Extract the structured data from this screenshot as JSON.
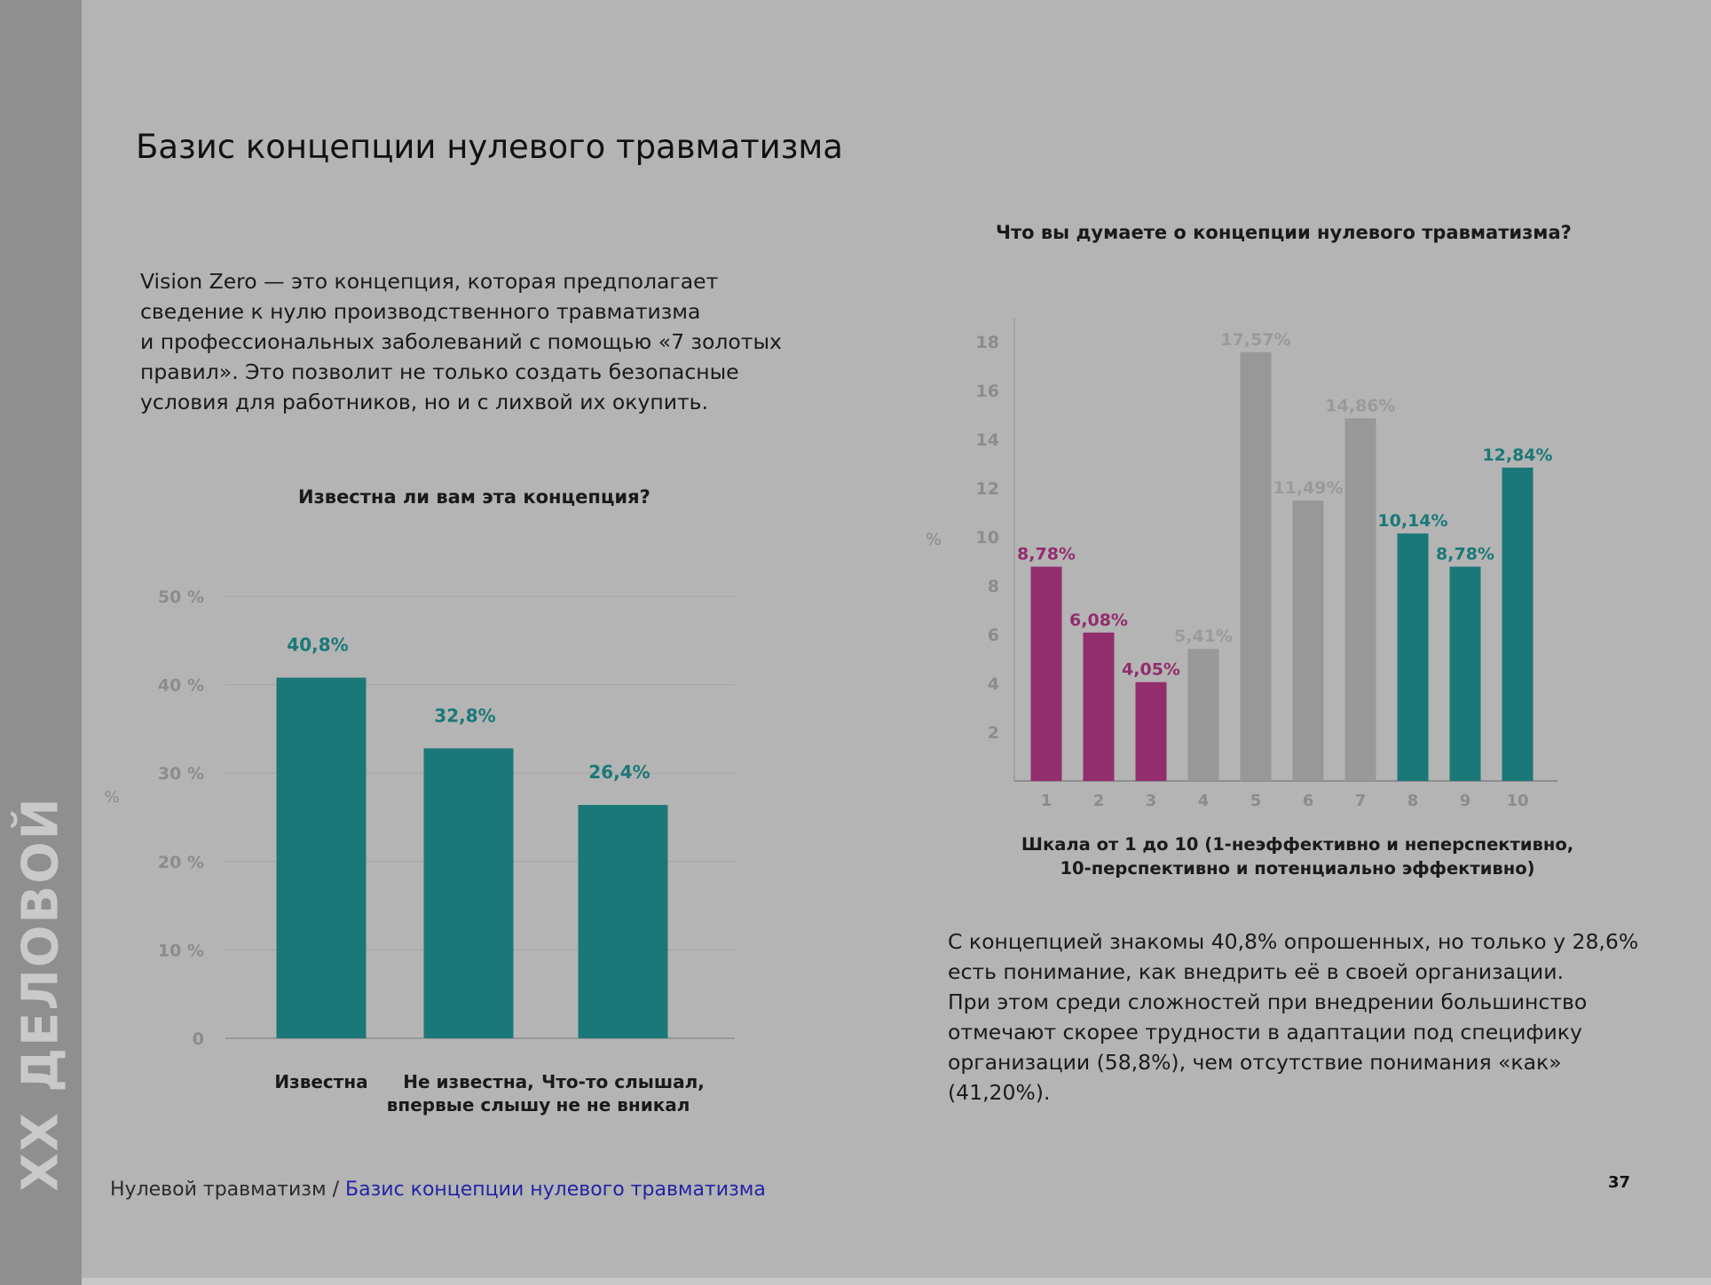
{
  "brand": {
    "text": "XX ДЕЛОВОЙ"
  },
  "page": {
    "title": "Базис концепции нулевого травматизма",
    "intro_lines": [
      "Vision Zero — это концепция, которая предполагает",
      "сведение к нулю производственного травматизма",
      "и профессиональных заболеваний с помощью «7 золотых",
      "правил». Это позволит не только создать безопасные",
      "условия для работников, но и с лихвой их окупить."
    ],
    "summary_lines": [
      "С концепцией знакомы 40,8% опрошенных, но только у 28,6%",
      "есть понимание, как внедрить её в своей организации.",
      "При этом среди сложностей при внедрении большинство",
      "отмечают скорее трудности в адаптации под специфику",
      "организации (58,8%), чем отсутствие понимания «как»",
      "(41,20%)."
    ],
    "breadcrumb": {
      "section": "Нулевой травматизм",
      "separator": " / ",
      "current": "Базис концепции нулевого травматизма"
    },
    "page_number": "37"
  },
  "colors": {
    "teal": "#1b7878",
    "magenta": "#922d6e",
    "gray_bar": "#989898",
    "gray_label": "#9a9a9a",
    "axis_text": "#8c8c8c"
  },
  "chart_data": [
    {
      "type": "bar",
      "title": "Известна ли вам эта концепция?",
      "ylabel": "%",
      "ylim": [
        0,
        50
      ],
      "ytick_labels": [
        "0",
        "10 %",
        "20 %",
        "30 %",
        "40 %",
        "50 %"
      ],
      "yticks": [
        0,
        10,
        20,
        30,
        40,
        50
      ],
      "grid": true,
      "categories": [
        "Известна",
        "Не известна,\nвпервые слышу",
        "Что-то слышал,\nне не вникал"
      ],
      "values": [
        40.8,
        32.8,
        26.4
      ],
      "data_labels": [
        "40,8%",
        "32,8%",
        "26,4%"
      ],
      "color": "#1b7878"
    },
    {
      "type": "bar",
      "title": "Что вы думаете о концепции нулевого травматизма?",
      "ylabel": "%",
      "ylim": [
        0,
        19
      ],
      "yticks": [
        2,
        4,
        6,
        8,
        10,
        12,
        14,
        16,
        18
      ],
      "grid": false,
      "xlabel_lines": [
        "Шкала от 1 до 10 (1-неэффективно и неперспективно,",
        "10-перспективно и потенциально эффективно)"
      ],
      "categories": [
        "1",
        "2",
        "3",
        "4",
        "5",
        "6",
        "7",
        "8",
        "9",
        "10"
      ],
      "values": [
        8.78,
        6.08,
        4.05,
        5.41,
        17.57,
        11.49,
        14.86,
        10.14,
        8.78,
        12.84
      ],
      "data_labels": [
        "8,78%",
        "6,08%",
        "4,05%",
        "5,41%",
        "17,57%",
        "11,49%",
        "14,86%",
        "10,14%",
        "8,78%",
        "12,84%"
      ],
      "bar_colors": [
        "#922d6e",
        "#922d6e",
        "#922d6e",
        "#989898",
        "#989898",
        "#989898",
        "#989898",
        "#1b7878",
        "#1b7878",
        "#1b7878"
      ],
      "label_colors": [
        "#922d6e",
        "#922d6e",
        "#922d6e",
        "#9a9a9a",
        "#9a9a9a",
        "#9a9a9a",
        "#9a9a9a",
        "#1b7878",
        "#1b7878",
        "#1b7878"
      ]
    }
  ]
}
